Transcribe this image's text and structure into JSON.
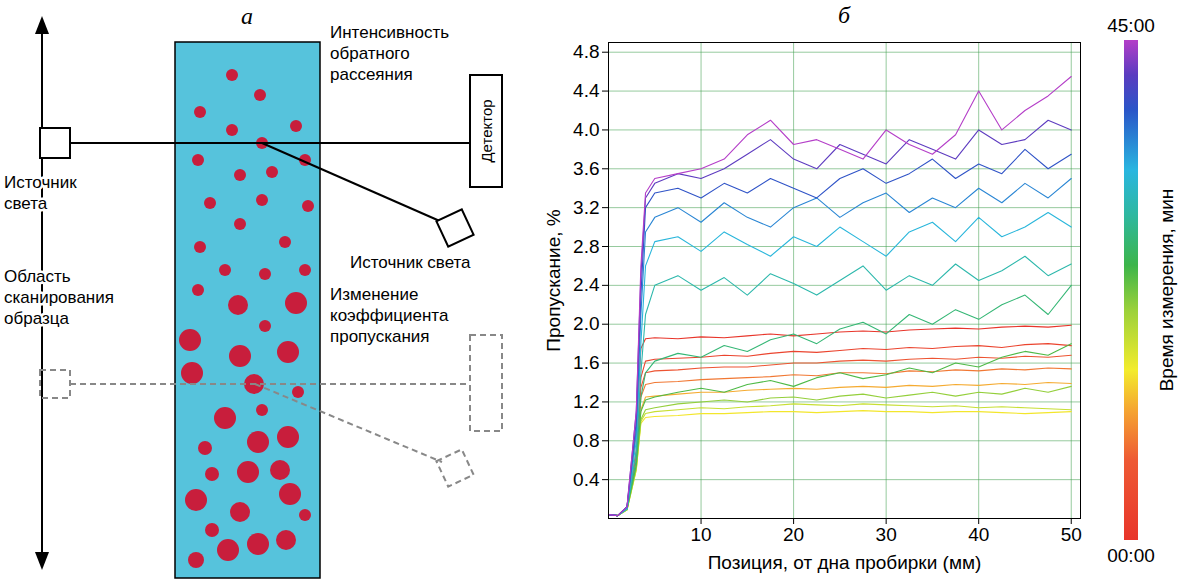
{
  "diagram": {
    "letter": "а",
    "backscatter_label": "Интенсивность обратного рассеяния",
    "detector": "Детектор",
    "light_source_labels": [
      "Источник света",
      "Источник света"
    ],
    "scan_area_label": "Область сканирования образца",
    "transmission_label": "Изменение коэффициента пропускания"
  },
  "chart_data": {
    "type": "line",
    "letter": "б",
    "x_label": "Позиция, от дна пробирки (мм)",
    "y_label": "Пропускание, %",
    "x": [
      0,
      1,
      2,
      3,
      3.5,
      4,
      5,
      7.5,
      10,
      12.5,
      15,
      17.5,
      20,
      22.5,
      25,
      27.5,
      30,
      32.5,
      35,
      37.5,
      40,
      42.5,
      45,
      47.5,
      50
    ],
    "xlim": [
      0,
      51
    ],
    "xticks": [
      10,
      20,
      30,
      40,
      50
    ],
    "ylim": [
      0,
      4.9
    ],
    "yticks": [
      0.4,
      0.8,
      1.2,
      1.6,
      {
        "value": 2,
        "label": "2.0"
      },
      2.4,
      2.8,
      3.2,
      3.6,
      {
        "value": 4,
        "label": "4.0"
      },
      4.4,
      4.8
    ],
    "grid": true,
    "colorbar": {
      "label": "Время измерения, мин",
      "range": [
        0,
        45
      ],
      "ticks": [
        {
          "value": 0,
          "label": "00:00"
        },
        {
          "value": 45,
          "label": "45:00"
        }
      ]
    },
    "series": [
      {
        "time": 0,
        "values": [
          0.04,
          0.03,
          0.12,
          0.9,
          1.75,
          1.85,
          1.86,
          1.85,
          1.87,
          1.86,
          1.88,
          1.9,
          1.88,
          1.9,
          1.92,
          1.93,
          1.92,
          1.94,
          1.95,
          1.96,
          1.95,
          1.97,
          1.98,
          1.97,
          1.99
        ]
      },
      {
        "time": 3,
        "values": [
          0.04,
          0.03,
          0.1,
          0.7,
          1.45,
          1.62,
          1.64,
          1.65,
          1.66,
          1.68,
          1.67,
          1.7,
          1.72,
          1.71,
          1.73,
          1.75,
          1.74,
          1.76,
          1.75,
          1.77,
          1.78,
          1.76,
          1.79,
          1.8,
          1.78
        ]
      },
      {
        "time": 6,
        "values": [
          0.04,
          0.03,
          0.1,
          0.65,
          1.35,
          1.5,
          1.52,
          1.53,
          1.55,
          1.56,
          1.56,
          1.58,
          1.6,
          1.6,
          1.62,
          1.63,
          1.62,
          1.64,
          1.65,
          1.64,
          1.66,
          1.65,
          1.67,
          1.66,
          1.68
        ]
      },
      {
        "time": 9,
        "values": [
          0.04,
          0.03,
          0.1,
          0.6,
          1.25,
          1.38,
          1.4,
          1.41,
          1.43,
          1.44,
          1.45,
          1.46,
          1.48,
          1.47,
          1.5,
          1.5,
          1.49,
          1.52,
          1.51,
          1.53,
          1.52,
          1.54,
          1.53,
          1.55,
          1.54
        ]
      },
      {
        "time": 12,
        "values": [
          0.04,
          0.03,
          0.09,
          0.55,
          1.12,
          1.25,
          1.26,
          1.28,
          1.3,
          1.3,
          1.32,
          1.33,
          1.34,
          1.33,
          1.35,
          1.36,
          1.35,
          1.37,
          1.36,
          1.38,
          1.37,
          1.39,
          1.38,
          1.4,
          1.39
        ]
      },
      {
        "time": 15,
        "values": [
          0.04,
          0.03,
          0.09,
          0.5,
          0.98,
          1.04,
          1.05,
          1.06,
          1.08,
          1.08,
          1.09,
          1.1,
          1.1,
          1.09,
          1.1,
          1.11,
          1.1,
          1.1,
          1.09,
          1.1,
          1.1,
          1.09,
          1.08,
          1.09,
          1.1
        ]
      },
      {
        "time": 18,
        "values": [
          0.04,
          0.03,
          0.09,
          0.5,
          1.0,
          1.08,
          1.1,
          1.12,
          1.14,
          1.13,
          1.15,
          1.16,
          1.18,
          1.17,
          1.16,
          1.18,
          1.17,
          1.16,
          1.15,
          1.16,
          1.14,
          1.15,
          1.14,
          1.13,
          1.12
        ]
      },
      {
        "time": 21,
        "values": [
          0.04,
          0.03,
          0.09,
          0.52,
          1.02,
          1.12,
          1.14,
          1.18,
          1.2,
          1.22,
          1.2,
          1.24,
          1.25,
          1.22,
          1.26,
          1.28,
          1.24,
          1.27,
          1.3,
          1.26,
          1.3,
          1.28,
          1.34,
          1.3,
          1.36
        ]
      },
      {
        "time": 24,
        "values": [
          0.04,
          0.03,
          0.1,
          0.55,
          1.1,
          1.22,
          1.25,
          1.3,
          1.34,
          1.3,
          1.38,
          1.42,
          1.36,
          1.45,
          1.5,
          1.44,
          1.48,
          1.55,
          1.5,
          1.6,
          1.56,
          1.66,
          1.72,
          1.68,
          1.8
        ]
      },
      {
        "time": 27,
        "values": [
          0.04,
          0.03,
          0.1,
          0.6,
          1.25,
          1.5,
          1.62,
          1.7,
          1.66,
          1.78,
          1.72,
          1.84,
          1.9,
          1.8,
          1.95,
          2.02,
          1.9,
          2.1,
          2.0,
          2.15,
          2.05,
          2.2,
          2.3,
          2.1,
          2.4
        ]
      },
      {
        "time": 30,
        "values": [
          0.04,
          0.03,
          0.1,
          0.7,
          1.5,
          2.1,
          2.4,
          2.5,
          2.35,
          2.48,
          2.3,
          2.52,
          2.42,
          2.3,
          2.45,
          2.6,
          2.35,
          2.5,
          2.4,
          2.62,
          2.45,
          2.55,
          2.7,
          2.5,
          2.62
        ]
      },
      {
        "time": 33,
        "values": [
          0.04,
          0.03,
          0.1,
          0.8,
          1.8,
          2.6,
          2.85,
          2.9,
          2.75,
          2.95,
          2.82,
          2.7,
          2.9,
          2.8,
          3.0,
          2.85,
          2.7,
          2.95,
          3.05,
          2.85,
          3.1,
          2.9,
          3.0,
          3.15,
          3.0
        ]
      },
      {
        "time": 36,
        "values": [
          0.04,
          0.03,
          0.12,
          0.9,
          2.1,
          2.95,
          3.1,
          3.2,
          3.05,
          3.25,
          3.1,
          3.0,
          3.2,
          3.3,
          3.1,
          3.25,
          3.35,
          3.15,
          3.3,
          3.2,
          3.4,
          3.25,
          3.45,
          3.3,
          3.5
        ]
      },
      {
        "time": 39,
        "values": [
          0.04,
          0.03,
          0.12,
          1.0,
          2.3,
          3.2,
          3.35,
          3.4,
          3.3,
          3.45,
          3.35,
          3.5,
          3.4,
          3.3,
          3.5,
          3.6,
          3.45,
          3.55,
          3.7,
          3.5,
          3.65,
          3.55,
          3.8,
          3.6,
          3.75
        ]
      },
      {
        "time": 42,
        "values": [
          0.04,
          0.03,
          0.12,
          1.1,
          2.5,
          3.3,
          3.45,
          3.55,
          3.5,
          3.6,
          3.75,
          3.9,
          3.7,
          3.6,
          3.85,
          3.75,
          3.65,
          3.9,
          3.8,
          3.7,
          4.0,
          3.85,
          3.9,
          4.1,
          4.0
        ]
      },
      {
        "time": 45,
        "values": [
          0.04,
          0.03,
          0.12,
          1.1,
          2.6,
          3.35,
          3.5,
          3.55,
          3.6,
          3.7,
          3.95,
          4.1,
          3.85,
          3.9,
          3.8,
          3.7,
          4.0,
          3.85,
          3.75,
          3.95,
          4.4,
          4.0,
          4.2,
          4.35,
          4.55
        ]
      }
    ]
  }
}
